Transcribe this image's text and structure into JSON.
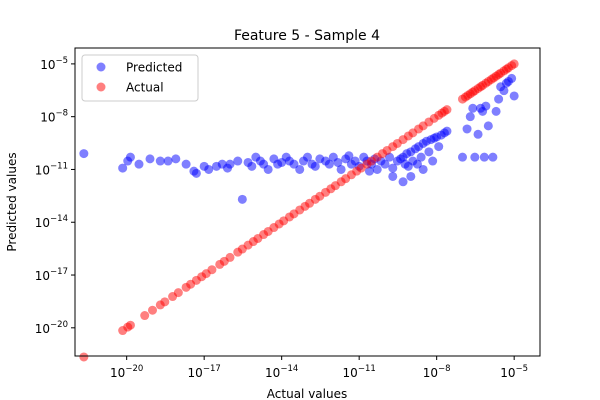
{
  "chart_data": {
    "type": "scatter",
    "title": "Feature 5 - Sample 4",
    "xlabel": "Actual values",
    "ylabel": "Predicted values",
    "xscale": "log",
    "yscale": "log",
    "xlim": [
      1e-22,
      0.0001
    ],
    "ylim": [
      2.5e-22,
      8e-05
    ],
    "x_ticks": [
      "10^-20",
      "10^-17",
      "10^-14",
      "10^-11",
      "10^-8",
      "10^-5"
    ],
    "y_ticks": [
      "10^-20",
      "10^-17",
      "10^-14",
      "10^-11",
      "10^-8",
      "10^-5"
    ],
    "legend_placement": "top-left",
    "grid": false,
    "series": [
      {
        "name": "Predicted",
        "color": "#0000ff",
        "points": [
          [
            2.2e-22,
            8e-11
          ],
          [
            7e-21,
            1.2e-11
          ],
          [
            1.1e-20,
            3e-11
          ],
          [
            1.4e-20,
            5e-11
          ],
          [
            3e-20,
            2e-11
          ],
          [
            8e-20,
            4e-11
          ],
          [
            2e-19,
            3e-11
          ],
          [
            4e-19,
            3e-11
          ],
          [
            8e-19,
            4e-11
          ],
          [
            2e-18,
            2e-11
          ],
          [
            4e-18,
            8e-12
          ],
          [
            5e-18,
            6e-12
          ],
          [
            1e-17,
            1.5e-11
          ],
          [
            1.5e-17,
            1e-11
          ],
          [
            3e-17,
            1.5e-11
          ],
          [
            5e-17,
            2e-11
          ],
          [
            8e-17,
            1.2e-11
          ],
          [
            1e-16,
            2e-11
          ],
          [
            2e-16,
            3e-11
          ],
          [
            3e-16,
            2e-13
          ],
          [
            5e-16,
            2.5e-11
          ],
          [
            7e-16,
            1.5e-11
          ],
          [
            1e-15,
            5e-11
          ],
          [
            1.5e-15,
            3e-11
          ],
          [
            2e-15,
            2e-11
          ],
          [
            3e-15,
            1e-11
          ],
          [
            5e-15,
            4e-11
          ],
          [
            7e-15,
            2e-11
          ],
          [
            1e-14,
            2.5e-11
          ],
          [
            1.5e-14,
            5e-11
          ],
          [
            2e-14,
            3e-11
          ],
          [
            3e-14,
            2e-11
          ],
          [
            5e-14,
            1e-11
          ],
          [
            7e-14,
            3e-11
          ],
          [
            1e-13,
            5e-11
          ],
          [
            1.5e-13,
            2e-11
          ],
          [
            2e-13,
            1.5e-11
          ],
          [
            3e-13,
            4e-11
          ],
          [
            5e-13,
            3e-11
          ],
          [
            7e-13,
            2e-11
          ],
          [
            1e-12,
            5e-11
          ],
          [
            1.5e-12,
            2.5e-11
          ],
          [
            2e-12,
            1e-11
          ],
          [
            3e-12,
            4e-11
          ],
          [
            4e-12,
            6e-11
          ],
          [
            5e-12,
            2e-11
          ],
          [
            7e-12,
            3e-11
          ],
          [
            1e-11,
            1.5e-11
          ],
          [
            1.5e-11,
            5e-11
          ],
          [
            2e-11,
            3e-11
          ],
          [
            2.5e-11,
            8e-12
          ],
          [
            3e-11,
            2e-11
          ],
          [
            4e-11,
            4e-11
          ],
          [
            5e-11,
            1e-11
          ],
          [
            7e-11,
            3e-11
          ],
          [
            1e-10,
            2e-11
          ],
          [
            1.5e-10,
            5e-11
          ],
          [
            2e-10,
            1.2e-11
          ],
          [
            2e-10,
            4e-12
          ],
          [
            3e-10,
            3e-11
          ],
          [
            4e-10,
            4e-11
          ],
          [
            5e-10,
            5e-11
          ],
          [
            5e-10,
            2e-12
          ],
          [
            6e-10,
            2e-11
          ],
          [
            7e-10,
            8e-11
          ],
          [
            8e-10,
            1.5e-11
          ],
          [
            1e-09,
            1e-10
          ],
          [
            1e-09,
            4e-12
          ],
          [
            1.2e-09,
            3e-11
          ],
          [
            1.5e-09,
            1.5e-10
          ],
          [
            1.8e-09,
            2e-11
          ],
          [
            2e-09,
            2e-10
          ],
          [
            2.5e-09,
            5e-11
          ],
          [
            3e-09,
            3e-10
          ],
          [
            3e-09,
            1e-11
          ],
          [
            4e-09,
            4e-10
          ],
          [
            5e-09,
            1e-10
          ],
          [
            6e-09,
            5e-10
          ],
          [
            7e-09,
            3e-11
          ],
          [
            8e-09,
            6e-10
          ],
          [
            1e-08,
            7e-10
          ],
          [
            1.2e-08,
            2e-10
          ],
          [
            1.5e-08,
            9e-10
          ],
          [
            2e-08,
            1.2e-09
          ],
          [
            2.5e-08,
            1.5e-09
          ],
          [
            1e-07,
            5e-11
          ],
          [
            1.5e-07,
            2e-09
          ],
          [
            2e-07,
            1e-08
          ],
          [
            2.5e-07,
            3e-08
          ],
          [
            3e-07,
            5e-11
          ],
          [
            4e-07,
            1e-09
          ],
          [
            5e-07,
            3e-08
          ],
          [
            6e-07,
            2e-08
          ],
          [
            7e-07,
            5e-11
          ],
          [
            8e-07,
            4e-08
          ],
          [
            1e-06,
            3e-09
          ],
          [
            1.5e-06,
            5e-11
          ],
          [
            2e-06,
            2e-08
          ],
          [
            2.5e-06,
            1e-07
          ],
          [
            3e-06,
            5e-07
          ],
          [
            4e-06,
            3e-07
          ],
          [
            5e-06,
            8e-07
          ],
          [
            6e-06,
            1e-06
          ],
          [
            8e-06,
            1.5e-06
          ],
          [
            1e-05,
            1.5e-07
          ]
        ]
      },
      {
        "name": "Actual",
        "color": "#ff0000",
        "points": [
          [
            2.2e-22,
            2.2e-22
          ],
          [
            7e-21,
            7e-21
          ],
          [
            1.1e-20,
            1.1e-20
          ],
          [
            1.4e-20,
            1.4e-20
          ],
          [
            5e-20,
            5e-20
          ],
          [
            1e-19,
            1e-19
          ],
          [
            2e-19,
            2e-19
          ],
          [
            3e-19,
            3e-19
          ],
          [
            6e-19,
            6e-19
          ],
          [
            1e-18,
            1e-18
          ],
          [
            2e-18,
            2e-18
          ],
          [
            3e-18,
            3e-18
          ],
          [
            5e-18,
            5e-18
          ],
          [
            8e-18,
            8e-18
          ],
          [
            1.2e-17,
            1.2e-17
          ],
          [
            2e-17,
            2e-17
          ],
          [
            4e-17,
            4e-17
          ],
          [
            6e-17,
            6e-17
          ],
          [
            1e-16,
            1e-16
          ],
          [
            2e-16,
            2e-16
          ],
          [
            3e-16,
            3e-16
          ],
          [
            5e-16,
            5e-16
          ],
          [
            8e-16,
            8e-16
          ],
          [
            1.2e-15,
            1.2e-15
          ],
          [
            2e-15,
            2e-15
          ],
          [
            3e-15,
            3e-15
          ],
          [
            5e-15,
            5e-15
          ],
          [
            8e-15,
            8e-15
          ],
          [
            1.2e-14,
            1.2e-14
          ],
          [
            2e-14,
            2e-14
          ],
          [
            3e-14,
            3e-14
          ],
          [
            5e-14,
            5e-14
          ],
          [
            8e-14,
            8e-14
          ],
          [
            1.2e-13,
            1.2e-13
          ],
          [
            2e-13,
            2e-13
          ],
          [
            3e-13,
            3e-13
          ],
          [
            5e-13,
            5e-13
          ],
          [
            8e-13,
            8e-13
          ],
          [
            1.2e-12,
            1.2e-12
          ],
          [
            2e-12,
            2e-12
          ],
          [
            3e-12,
            3e-12
          ],
          [
            5e-12,
            5e-12
          ],
          [
            8e-12,
            8e-12
          ],
          [
            1.2e-11,
            1.2e-11
          ],
          [
            2e-11,
            2e-11
          ],
          [
            3e-11,
            3e-11
          ],
          [
            5e-11,
            5e-11
          ],
          [
            8e-11,
            8e-11
          ],
          [
            1.2e-10,
            1.2e-10
          ],
          [
            2e-10,
            2e-10
          ],
          [
            3e-10,
            3e-10
          ],
          [
            5e-10,
            5e-10
          ],
          [
            8e-10,
            8e-10
          ],
          [
            1.2e-09,
            1.2e-09
          ],
          [
            2e-09,
            2e-09
          ],
          [
            3e-09,
            3e-09
          ],
          [
            5e-09,
            5e-09
          ],
          [
            8e-09,
            8e-09
          ],
          [
            1.2e-08,
            1.2e-08
          ],
          [
            1.6e-08,
            1.6e-08
          ],
          [
            2e-08,
            2e-08
          ],
          [
            2.5e-08,
            2.5e-08
          ],
          [
            1e-07,
            1e-07
          ],
          [
            1.3e-07,
            1.3e-07
          ],
          [
            1.6e-07,
            1.6e-07
          ],
          [
            2e-07,
            2e-07
          ],
          [
            2.5e-07,
            2.5e-07
          ],
          [
            3e-07,
            3e-07
          ],
          [
            4e-07,
            4e-07
          ],
          [
            5e-07,
            5e-07
          ],
          [
            6e-07,
            6e-07
          ],
          [
            8e-07,
            8e-07
          ],
          [
            1e-06,
            1e-06
          ],
          [
            1.3e-06,
            1.3e-06
          ],
          [
            1.6e-06,
            1.6e-06
          ],
          [
            2e-06,
            2e-06
          ],
          [
            2.5e-06,
            2.5e-06
          ],
          [
            3e-06,
            3e-06
          ],
          [
            4e-06,
            4e-06
          ],
          [
            5e-06,
            5e-06
          ],
          [
            6e-06,
            6e-06
          ],
          [
            8e-06,
            8e-06
          ],
          [
            1e-05,
            1e-05
          ]
        ]
      }
    ]
  }
}
